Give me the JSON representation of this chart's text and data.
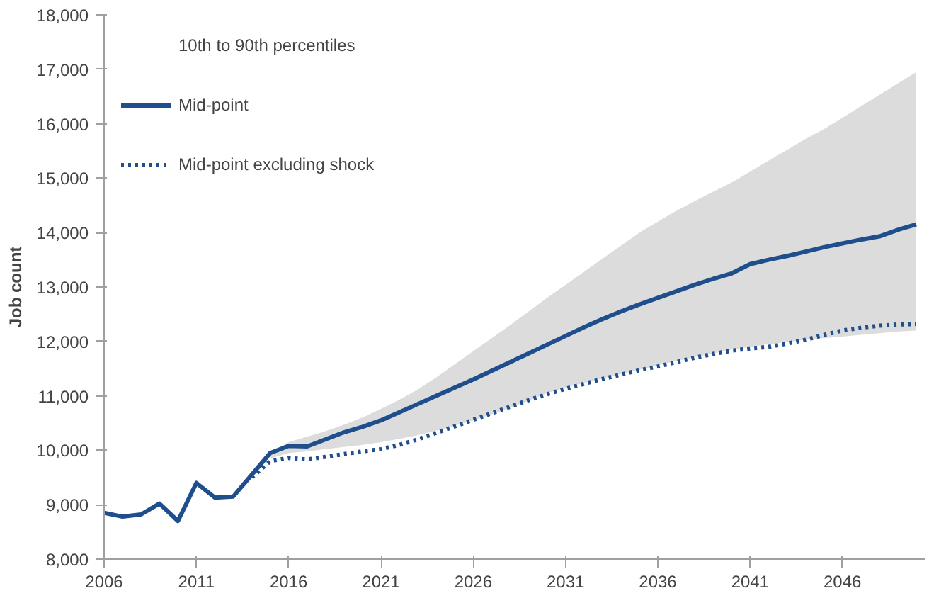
{
  "chart_data": {
    "type": "line",
    "ylabel": "Job count",
    "xlim": [
      2006,
      2050.5
    ],
    "xticks": [
      2006,
      2011,
      2016,
      2021,
      2026,
      2031,
      2036,
      2041,
      2046
    ],
    "ylim": [
      8000,
      18000
    ],
    "yticks": [
      {
        "value": 8000,
        "label": "8,000"
      },
      {
        "value": 9000,
        "label": "9,000"
      },
      {
        "value": 10000,
        "label": "10,000"
      },
      {
        "value": 11000,
        "label": "11,000"
      },
      {
        "value": 12000,
        "label": "12,000"
      },
      {
        "value": 13000,
        "label": "13,000"
      },
      {
        "value": 14000,
        "label": "14,000"
      },
      {
        "value": 15000,
        "label": "15,000"
      },
      {
        "value": 16000,
        "label": "16,000"
      },
      {
        "value": 17000,
        "label": "17,000"
      },
      {
        "value": 18000,
        "label": "18,000"
      }
    ],
    "grid": false,
    "legend": "top left",
    "annotations": [
      "10th to 90th percentiles"
    ],
    "series": [
      {
        "name": "Mid-point",
        "color": "#1f4e8c",
        "line_style": "solid",
        "x": [
          2006,
          2007,
          2008,
          2009,
          2010,
          2011,
          2012,
          2013,
          2014,
          2015,
          2016,
          2017,
          2018,
          2019,
          2020,
          2021,
          2022,
          2023,
          2024,
          2025,
          2026,
          2027,
          2028,
          2029,
          2030,
          2031,
          2032,
          2033,
          2034,
          2035,
          2036,
          2037,
          2038,
          2039,
          2040,
          2041,
          2042,
          2043,
          2044,
          2045,
          2046,
          2047,
          2048,
          2049,
          2050
        ],
        "values": [
          8850,
          8780,
          8820,
          9020,
          8700,
          9400,
          9130,
          9150,
          9550,
          9950,
          10080,
          10070,
          10200,
          10330,
          10430,
          10550,
          10700,
          10850,
          11000,
          11150,
          11300,
          11460,
          11620,
          11780,
          11940,
          12100,
          12260,
          12410,
          12550,
          12680,
          12800,
          12920,
          13040,
          13150,
          13250,
          13420,
          13500,
          13570,
          13650,
          13730,
          13800,
          13870,
          13930,
          14050,
          14150
        ],
        "lower": [
          null,
          null,
          null,
          null,
          null,
          null,
          null,
          null,
          null,
          9850,
          9950,
          9980,
          10020,
          10060,
          10100,
          10150,
          10210,
          10280,
          10360,
          10450,
          10550,
          10660,
          10780,
          10910,
          11050,
          11150,
          11240,
          11320,
          11400,
          11480,
          11560,
          11640,
          11710,
          11780,
          11850,
          11900,
          11950,
          11990,
          12030,
          12060,
          12090,
          12120,
          12150,
          12180,
          12200
        ],
        "upper": [
          null,
          null,
          null,
          null,
          null,
          null,
          null,
          null,
          null,
          9950,
          10150,
          10250,
          10350,
          10470,
          10600,
          10760,
          10930,
          11120,
          11340,
          11580,
          11820,
          12060,
          12300,
          12550,
          12800,
          13040,
          13280,
          13520,
          13760,
          14000,
          14200,
          14400,
          14580,
          14750,
          14920,
          15120,
          15320,
          15520,
          15720,
          15900,
          16110,
          16320,
          16530,
          16740,
          16950
        ]
      },
      {
        "name": "Mid-point excluding shock",
        "color": "#1f4e8c",
        "line_style": "dotted",
        "x": [
          2014,
          2015,
          2016,
          2017,
          2018,
          2019,
          2020,
          2021,
          2022,
          2023,
          2024,
          2025,
          2026,
          2027,
          2028,
          2029,
          2030,
          2031,
          2032,
          2033,
          2034,
          2035,
          2036,
          2037,
          2038,
          2039,
          2040,
          2041,
          2042,
          2043,
          2044,
          2045,
          2046,
          2047,
          2048,
          2049,
          2050
        ],
        "values": [
          9500,
          9800,
          9860,
          9830,
          9880,
          9930,
          9980,
          10020,
          10100,
          10200,
          10320,
          10440,
          10560,
          10680,
          10800,
          10920,
          11030,
          11130,
          11220,
          11310,
          11390,
          11470,
          11540,
          11620,
          11700,
          11770,
          11830,
          11870,
          11900,
          11960,
          12030,
          12120,
          12200,
          12250,
          12290,
          12310,
          12320
        ]
      }
    ]
  }
}
